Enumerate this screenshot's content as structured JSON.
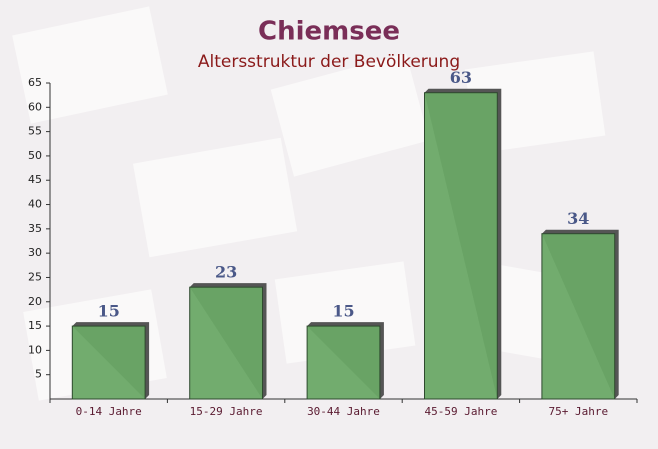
{
  "chart_data": {
    "type": "bar",
    "title": "Chiemsee",
    "subtitle": "Altersstruktur der Bevölkerung",
    "categories": [
      "0-14 Jahre",
      "15-29 Jahre",
      "30-44 Jahre",
      "45-59 Jahre",
      "75+ Jahre"
    ],
    "values": [
      15,
      23,
      15,
      63,
      34
    ],
    "color": "#6aa866",
    "ylim": [
      0,
      65
    ],
    "yticks": [
      5,
      10,
      15,
      20,
      25,
      30,
      35,
      40,
      45,
      50,
      55,
      60,
      65
    ],
    "grid": false
  }
}
